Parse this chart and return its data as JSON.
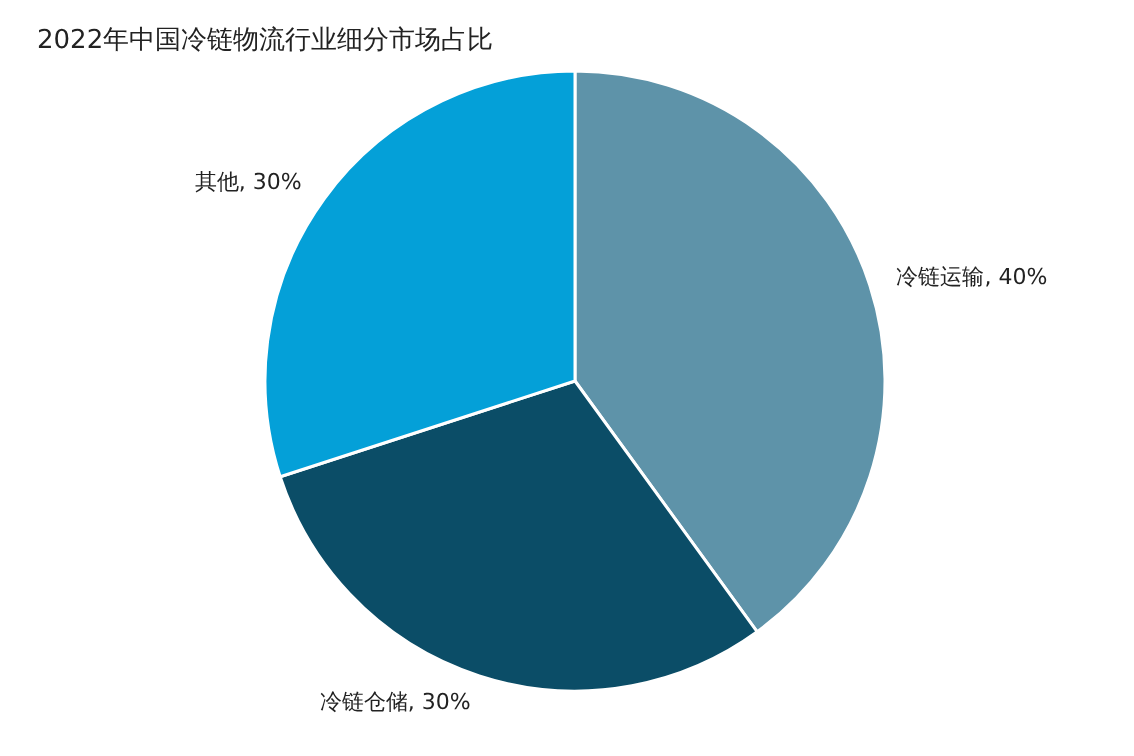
{
  "chart_data": {
    "type": "pie",
    "title": "2022年中国冷链物流行业细分市场占比",
    "categories": [
      "冷链运输",
      "冷链仓储",
      "其他"
    ],
    "values": [
      40,
      30,
      30
    ],
    "colors": [
      "#5e93a9",
      "#0b4d67",
      "#04a0d8"
    ],
    "value_labels": [
      "40%",
      "30%",
      "30%"
    ]
  }
}
